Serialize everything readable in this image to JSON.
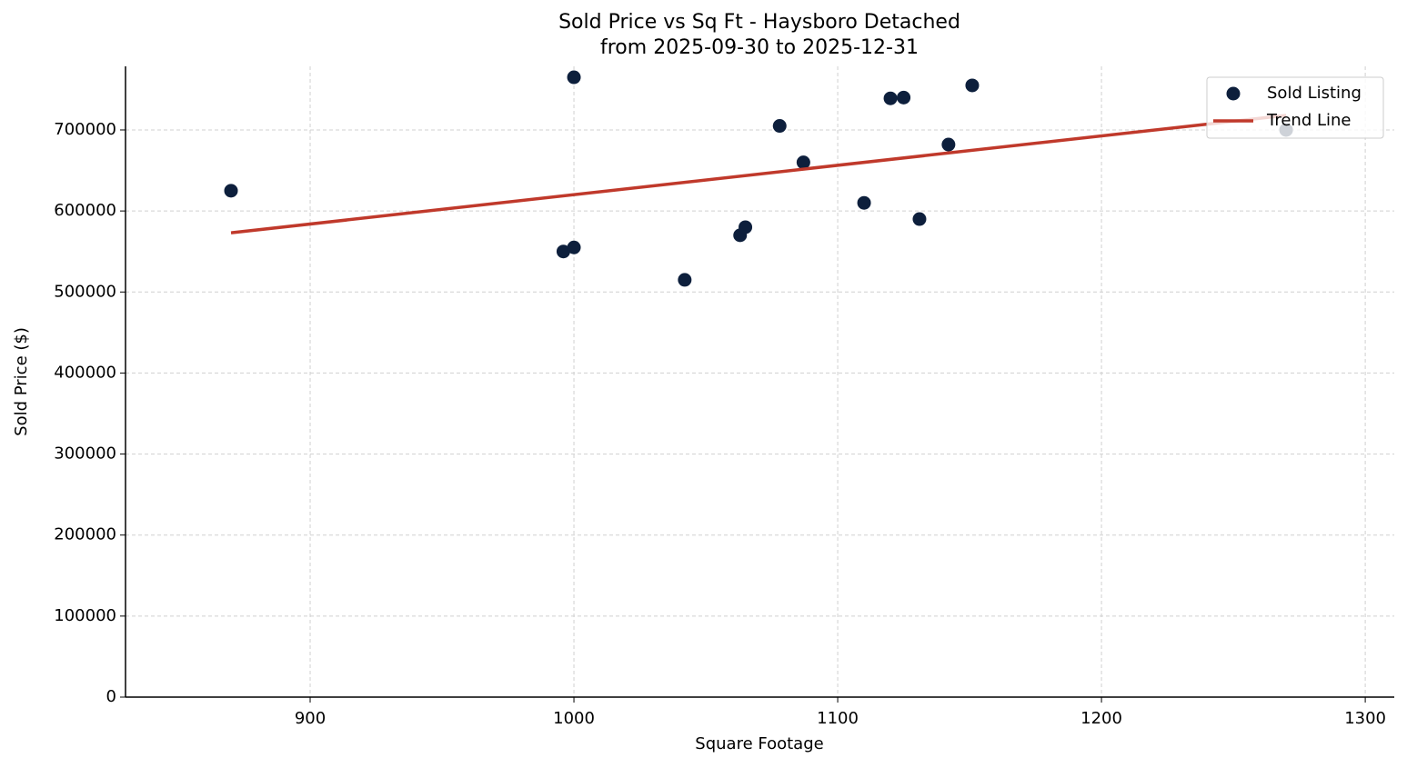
{
  "chart_data": {
    "type": "scatter",
    "title": "Sold Price vs Sq Ft - Haysboro Detached",
    "subtitle": "from 2025-09-30 to 2025-12-31",
    "x_label": "Square Footage",
    "y_label": "Sold Price ($)",
    "xlim": [
      830,
      1311
    ],
    "ylim": [
      0,
      778500
    ],
    "xticks": [
      900,
      1000,
      1100,
      1200,
      1300
    ],
    "yticks": [
      0,
      100000,
      200000,
      300000,
      400000,
      500000,
      600000,
      700000
    ],
    "grid": true,
    "legend": "upper right",
    "series": [
      {
        "name": "Sold Listing",
        "kind": "points",
        "color": "#0d1f3c",
        "x": [
          870,
          996,
          1000,
          1000,
          1042,
          1063,
          1065,
          1078,
          1087,
          1110,
          1120,
          1125,
          1131,
          1142,
          1151,
          1270
        ],
        "values": [
          625000,
          550000,
          555000,
          765000,
          515000,
          570000,
          580000,
          705000,
          660000,
          610000,
          739000,
          740000,
          590000,
          682000,
          755000,
          700000
        ]
      },
      {
        "name": "Trend Line",
        "kind": "line",
        "color": "#c0392b",
        "x": [
          870,
          1270
        ],
        "values": [
          573000,
          718000
        ]
      }
    ]
  }
}
